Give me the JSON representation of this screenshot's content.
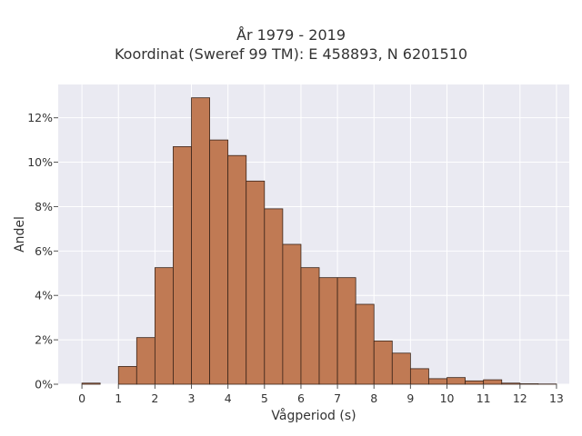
{
  "chart_data": {
    "type": "bar",
    "title": "År 1979 - 2019",
    "subtitle": "Koordinat (Sweref 99 TM): E 458893, N 6201510",
    "xlabel": "Vågperiod (s)",
    "ylabel": "Andel",
    "bin_edges": [
      0,
      0.5,
      1,
      1.5,
      2,
      2.5,
      3,
      3.5,
      4,
      4.5,
      5,
      5.5,
      6,
      6.5,
      7,
      7.5,
      8,
      8.5,
      9,
      9.5,
      10,
      10.5,
      11,
      11.5,
      12,
      12.5,
      13
    ],
    "values": [
      0.05,
      0,
      0.8,
      2.1,
      5.25,
      10.7,
      12.9,
      11.0,
      10.3,
      9.15,
      7.9,
      6.3,
      5.25,
      4.8,
      4.8,
      3.6,
      1.95,
      1.4,
      0.7,
      0.25,
      0.3,
      0.15,
      0.2,
      0.05,
      0.02,
      0.01
    ],
    "value_unit": "%",
    "xlim": [
      -0.65,
      13.35
    ],
    "ylim": [
      0,
      13.5
    ],
    "xticks": [
      "0",
      "1",
      "2",
      "3",
      "4",
      "5",
      "6",
      "7",
      "8",
      "9",
      "10",
      "11",
      "12",
      "13"
    ],
    "yticks": [
      "0%",
      "2%",
      "4%",
      "6%",
      "8%",
      "10%",
      "12%"
    ],
    "grid": true,
    "bar_color": "#c07a54",
    "bar_edge_color": "#3a2419",
    "background_color": "#eaeaf2"
  }
}
